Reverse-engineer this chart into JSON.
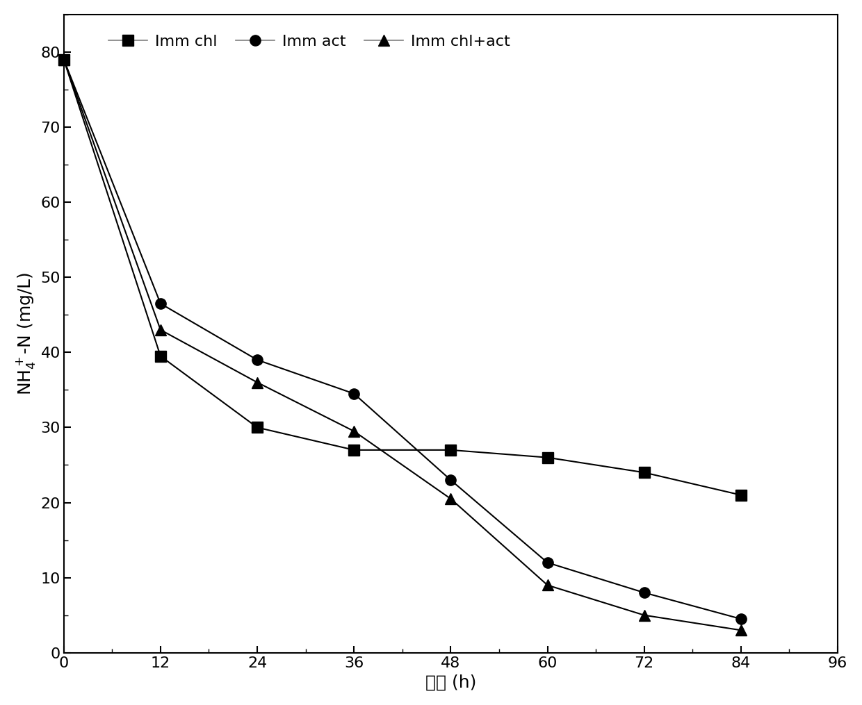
{
  "series": [
    {
      "label": "Imm chl",
      "marker": "s",
      "x": [
        0,
        12,
        24,
        36,
        48,
        60,
        72,
        84
      ],
      "y": [
        79,
        39.5,
        30,
        27,
        27,
        26,
        24,
        21
      ]
    },
    {
      "label": "Imm act",
      "marker": "o",
      "x": [
        0,
        12,
        24,
        36,
        48,
        60,
        72,
        84
      ],
      "y": [
        79,
        46.5,
        39,
        34.5,
        23,
        12,
        8,
        4.5
      ]
    },
    {
      "label": "Imm chl+act",
      "marker": "^",
      "x": [
        0,
        12,
        24,
        36,
        48,
        60,
        72,
        84
      ],
      "y": [
        79,
        43,
        36,
        29.5,
        20.5,
        9,
        5,
        3
      ]
    }
  ],
  "xlabel": "时间 (h)",
  "xlim": [
    0,
    96
  ],
  "ylim": [
    0,
    85
  ],
  "xticks": [
    0,
    12,
    24,
    36,
    48,
    60,
    72,
    84,
    96
  ],
  "yticks": [
    0,
    10,
    20,
    30,
    40,
    50,
    60,
    70,
    80
  ],
  "line_color": "black",
  "marker_color": "black",
  "marker_size": 11,
  "line_width": 1.5,
  "legend_loc": "upper left",
  "label_fontsize": 18,
  "tick_fontsize": 16,
  "legend_fontsize": 16
}
